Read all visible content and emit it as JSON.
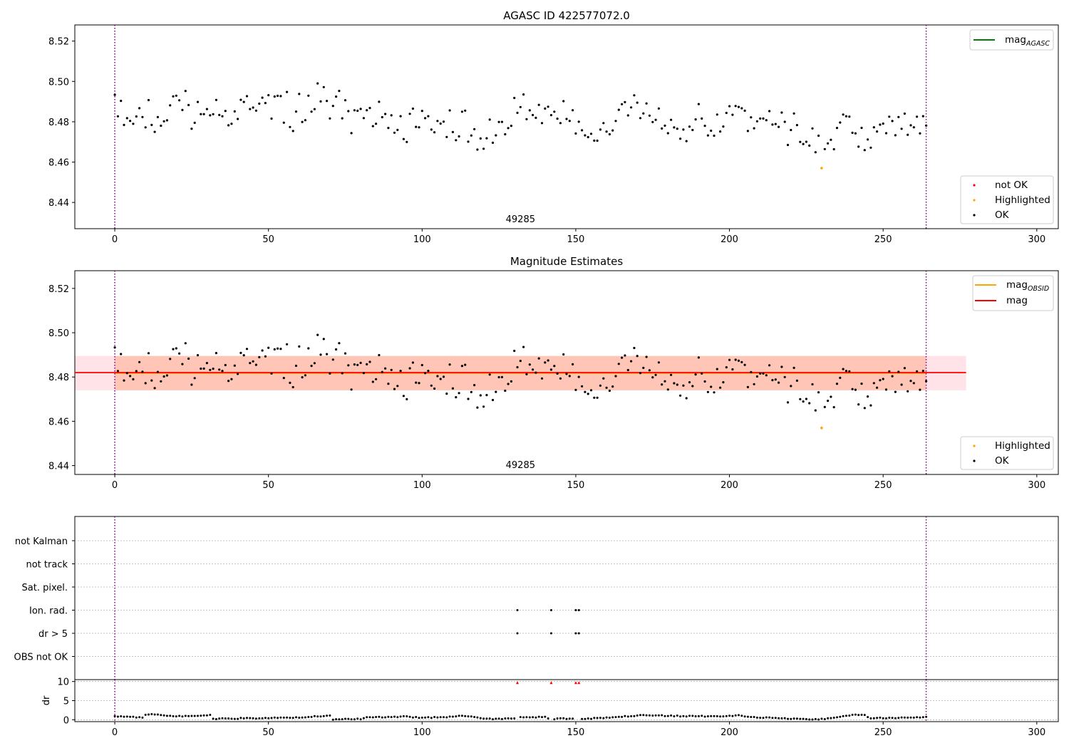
{
  "figure_title": "AGASC ID 422577072.0",
  "colors": {
    "ok": "#000000",
    "highlighted": "#ffa500",
    "not_ok": "#ff0000",
    "agasc_line": "#008000",
    "obsid_line": "#ffa500",
    "mag_line": "#ff0000",
    "mag_band": "#ffc0cb",
    "obsid_band": "#ffa07a",
    "boundary": "#800080",
    "grid": "#b0b0b0"
  },
  "chart_data": [
    {
      "type": "scatter",
      "title": "",
      "xlim": [
        -13,
        307
      ],
      "ylim": [
        8.427,
        8.528
      ],
      "xticks": [
        0,
        50,
        100,
        150,
        200,
        250,
        300
      ],
      "yticks": [
        8.44,
        8.46,
        8.48,
        8.5,
        8.52
      ],
      "ytick_labels": [
        "8.44",
        "8.46",
        "8.48",
        "8.50",
        "8.52"
      ],
      "boundaries_x": [
        0,
        264
      ],
      "obsid_label": {
        "text": "49285",
        "x": 132
      },
      "legend_upper": [
        {
          "label": "mag",
          "sub": "AGASC",
          "kind": "line",
          "color": "agasc_line"
        }
      ],
      "legend_lower": [
        {
          "label": "not OK",
          "kind": "dot",
          "color": "not_ok"
        },
        {
          "label": "Highlighted",
          "kind": "dot",
          "color": "highlighted"
        },
        {
          "label": "OK",
          "kind": "dot",
          "color": "ok"
        }
      ],
      "series": [
        {
          "name": "OK",
          "color": "ok",
          "source": "mag_points"
        },
        {
          "name": "Highlighted",
          "color": "highlighted",
          "points": [
            [
              230,
              8.457
            ]
          ]
        }
      ]
    },
    {
      "type": "scatter",
      "title": "Magnitude Estimates",
      "xlim": [
        -13,
        307
      ],
      "ylim": [
        8.436,
        8.528
      ],
      "xticks": [
        0,
        50,
        100,
        150,
        200,
        250,
        300
      ],
      "yticks": [
        8.44,
        8.46,
        8.48,
        8.5,
        8.52
      ],
      "ytick_labels": [
        "8.44",
        "8.46",
        "8.48",
        "8.50",
        "8.52"
      ],
      "boundaries_x": [
        0,
        264
      ],
      "obsid_label": {
        "text": "49285",
        "x": 132
      },
      "mag_line": {
        "y": 8.482,
        "x_from": -13,
        "x_to": 277,
        "band": [
          8.474,
          8.4895
        ]
      },
      "obsid_line": {
        "y": 8.4818,
        "x_from": 0,
        "x_to": 264,
        "band": [
          8.474,
          8.4895
        ]
      },
      "legend_upper": [
        {
          "label": "mag",
          "sub": "OBSID",
          "kind": "line",
          "color": "obsid_line"
        },
        {
          "label": "mag",
          "sub": "",
          "kind": "line",
          "color": "mag_line"
        }
      ],
      "legend_lower": [
        {
          "label": "Highlighted",
          "kind": "dot",
          "color": "highlighted"
        },
        {
          "label": "OK",
          "kind": "dot",
          "color": "ok"
        }
      ],
      "series": [
        {
          "name": "OK",
          "color": "ok",
          "source": "mag_points"
        },
        {
          "name": "Highlighted",
          "color": "highlighted",
          "points": [
            [
              230,
              8.457
            ]
          ]
        }
      ]
    },
    {
      "type": "scatter",
      "title": "",
      "xlim": [
        -13,
        307
      ],
      "categories": [
        "not Kalman",
        "not track",
        "Sat. pixel.",
        "Ion. rad.",
        "dr > 5",
        "OBS not OK"
      ],
      "flags": {
        "Ion. rad.": [
          131,
          142,
          150,
          151
        ],
        "dr > 5": [
          131,
          142,
          150,
          151
        ]
      },
      "boundaries_x": [
        0,
        264
      ]
    },
    {
      "type": "scatter",
      "title": "",
      "ylabel": "dr",
      "xlim": [
        -13,
        307
      ],
      "ylim": [
        -0.5,
        10.5
      ],
      "xticks": [
        0,
        50,
        100,
        150,
        200,
        250,
        300
      ],
      "yticks": [
        0,
        5,
        10
      ],
      "ytick_labels": [
        "0",
        "5",
        "10"
      ],
      "boundaries_x": [
        0,
        264
      ],
      "clipped_markers_x": [
        131,
        142,
        150,
        151
      ],
      "dr_profile": [
        [
          0,
          0.9
        ],
        [
          5,
          0.7
        ],
        [
          9,
          0.6
        ],
        [
          10,
          1.3
        ],
        [
          14,
          1.4
        ],
        [
          18,
          1.0
        ],
        [
          22,
          0.9
        ],
        [
          31,
          1.2
        ],
        [
          32,
          0.2
        ],
        [
          35,
          0.3
        ],
        [
          45,
          0.4
        ],
        [
          55,
          0.5
        ],
        [
          62,
          0.6
        ],
        [
          70,
          1.2
        ],
        [
          71,
          0.1
        ],
        [
          80,
          0.2
        ],
        [
          82,
          0.6
        ],
        [
          95,
          0.8
        ],
        [
          100,
          0.5
        ],
        [
          110,
          0.8
        ],
        [
          113,
          1.1
        ],
        [
          118,
          0.6
        ],
        [
          122,
          0.2
        ],
        [
          130,
          0.3
        ],
        [
          131,
          0.6
        ],
        [
          140,
          0.7
        ],
        [
          142,
          0.2
        ],
        [
          150,
          0.4
        ],
        [
          152,
          0.2
        ],
        [
          160,
          0.5
        ],
        [
          172,
          1.2
        ],
        [
          180,
          1.0
        ],
        [
          190,
          0.9
        ],
        [
          200,
          1.0
        ],
        [
          203,
          1.1
        ],
        [
          210,
          0.6
        ],
        [
          220,
          0.3
        ],
        [
          229,
          0.1
        ],
        [
          233,
          0.4
        ],
        [
          241,
          1.3
        ],
        [
          244,
          1.2
        ],
        [
          246,
          0.4
        ],
        [
          255,
          0.5
        ],
        [
          264,
          0.7
        ]
      ]
    }
  ],
  "mag_points_anchors": [
    [
      0,
      8.484
    ],
    [
      4,
      8.486
    ],
    [
      6,
      8.479
    ],
    [
      10,
      8.486
    ],
    [
      14,
      8.482
    ],
    [
      18,
      8.486
    ],
    [
      22,
      8.491
    ],
    [
      26,
      8.482
    ],
    [
      30,
      8.486
    ],
    [
      34,
      8.481
    ],
    [
      38,
      8.485
    ],
    [
      42,
      8.491
    ],
    [
      46,
      8.486
    ],
    [
      50,
      8.489
    ],
    [
      54,
      8.488
    ],
    [
      58,
      8.483
    ],
    [
      62,
      8.487
    ],
    [
      66,
      8.49
    ],
    [
      70,
      8.488
    ],
    [
      74,
      8.487
    ],
    [
      78,
      8.479
    ],
    [
      82,
      8.481
    ],
    [
      86,
      8.482
    ],
    [
      90,
      8.477
    ],
    [
      94,
      8.478
    ],
    [
      98,
      8.479
    ],
    [
      102,
      8.48
    ],
    [
      106,
      8.478
    ],
    [
      110,
      8.477
    ],
    [
      114,
      8.478
    ],
    [
      118,
      8.473
    ],
    [
      122,
      8.475
    ],
    [
      126,
      8.477
    ],
    [
      130,
      8.482
    ],
    [
      134,
      8.487
    ],
    [
      138,
      8.487
    ],
    [
      142,
      8.483
    ],
    [
      146,
      8.486
    ],
    [
      150,
      8.481
    ],
    [
      154,
      8.477
    ],
    [
      158,
      8.474
    ],
    [
      162,
      8.476
    ],
    [
      166,
      8.492
    ],
    [
      170,
      8.489
    ],
    [
      174,
      8.485
    ],
    [
      178,
      8.479
    ],
    [
      182,
      8.478
    ],
    [
      186,
      8.479
    ],
    [
      190,
      8.484
    ],
    [
      194,
      8.475
    ],
    [
      198,
      8.478
    ],
    [
      202,
      8.487
    ],
    [
      206,
      8.478
    ],
    [
      210,
      8.48
    ],
    [
      214,
      8.48
    ],
    [
      218,
      8.477
    ],
    [
      222,
      8.477
    ],
    [
      226,
      8.472
    ],
    [
      230,
      8.468
    ],
    [
      234,
      8.471
    ],
    [
      238,
      8.479
    ],
    [
      242,
      8.475
    ],
    [
      246,
      8.472
    ],
    [
      250,
      8.474
    ],
    [
      254,
      8.477
    ],
    [
      258,
      8.476
    ],
    [
      264,
      8.482
    ]
  ]
}
